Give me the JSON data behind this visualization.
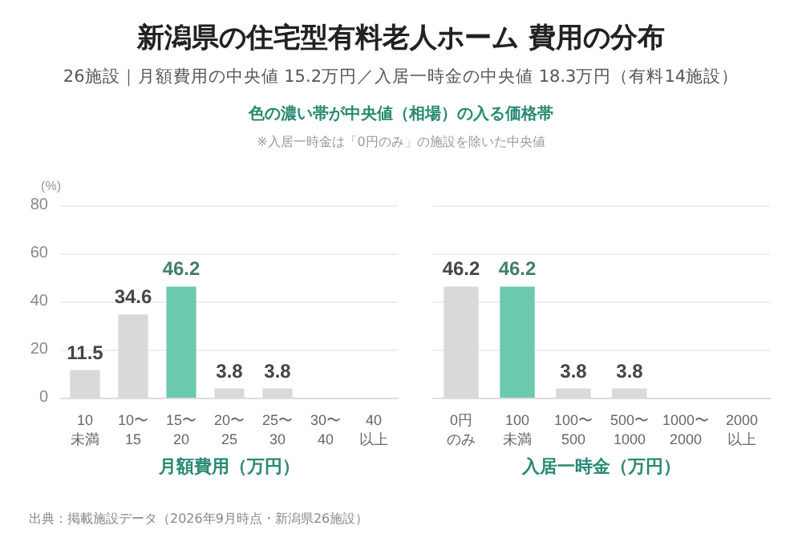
{
  "chart_data": [
    {
      "type": "bar",
      "title": "新潟県の住宅型有料老人ホーム 費用の分布",
      "subtitle": "26施設｜月額費用の中央値 15.2万円／入居一時金の中央値 18.3万円（有料14施設）",
      "annotations": [
        "色の濃い帯が中央値（相場）の入る価格帯",
        "※入居一時金は「0円のみ」の施設を除いた中央値",
        "出典：掲載施設データ（2026年9月時点・新潟県26施設）"
      ],
      "ylabel": "(%)",
      "xlabel": "月額費用（万円）",
      "categories": [
        "10\n未満",
        "10〜\n15",
        "15〜\n20",
        "20〜\n25",
        "25〜\n30",
        "30〜\n40",
        "40\n以上"
      ],
      "values": [
        11.5,
        34.6,
        46.2,
        3.8,
        3.8,
        0,
        0
      ],
      "value_labels": [
        "11.5",
        "34.6",
        "46.2",
        "3.8",
        "3.8",
        null,
        null
      ],
      "colors": [
        "#d9d9d9",
        "#d9d9d9",
        "#6cc9b0",
        "#d9d9d9",
        "#d9d9d9",
        "#d9d9d9",
        "#d9d9d9"
      ],
      "ylim": [
        0,
        80
      ],
      "yticks": [
        0,
        20,
        40,
        60,
        80
      ],
      "grid": "y"
    },
    {
      "type": "bar",
      "xlabel": "入居一時金（万円）",
      "categories": [
        "0円のみ",
        "100\n未満",
        "100〜\n500",
        "500〜\n1000",
        "1000〜\n2000",
        "2000\n以上"
      ],
      "values": [
        46.2,
        46.2,
        3.8,
        3.8,
        0,
        0
      ],
      "value_labels": [
        "46.2",
        "46.2",
        "3.8",
        "3.8",
        null,
        null
      ],
      "colors": [
        "#d9d9d9",
        "#6cc9b0",
        "#d9d9d9",
        "#d9d9d9",
        "#d9d9d9",
        "#d9d9d9"
      ],
      "ylim": [
        0,
        80
      ],
      "yticks": [
        0,
        20,
        40,
        60,
        80
      ],
      "grid": "y",
      "tick_labels": "x"
    }
  ]
}
